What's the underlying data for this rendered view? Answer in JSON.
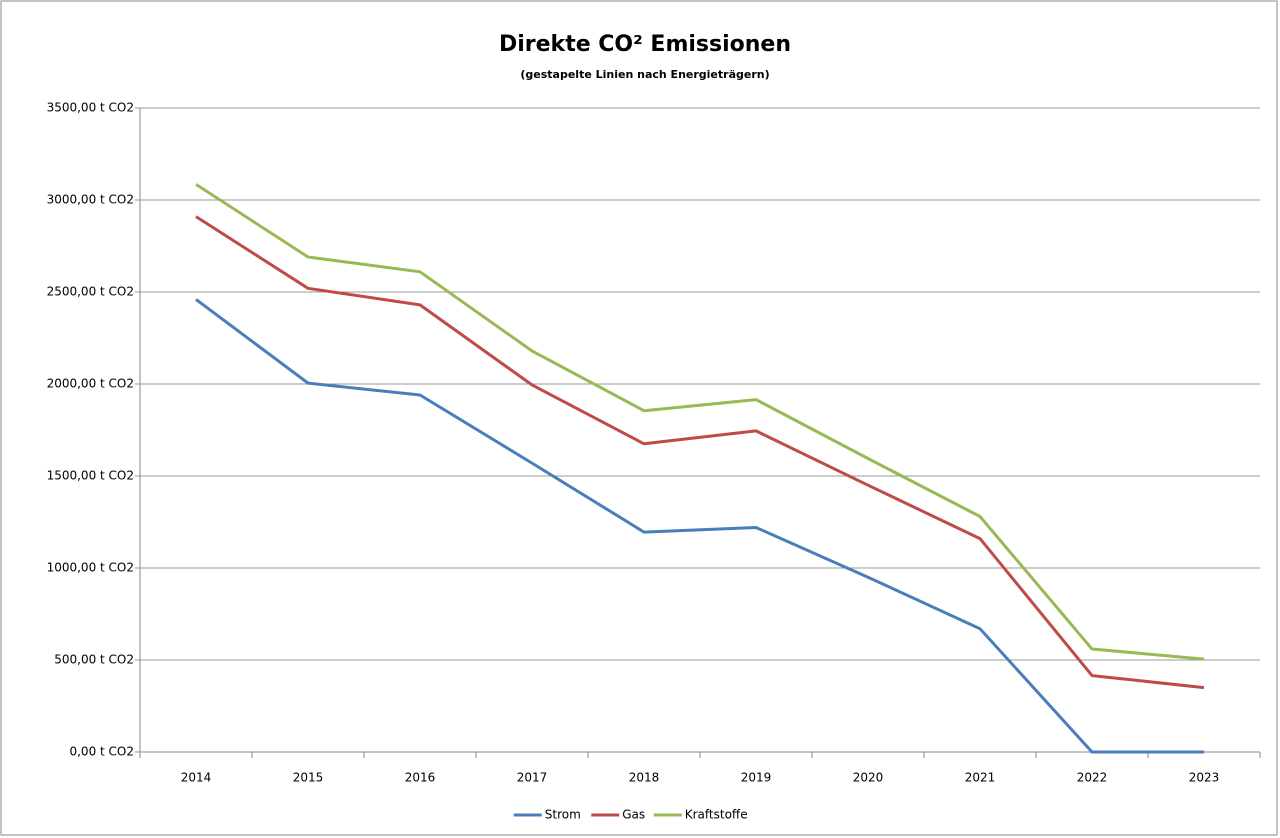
{
  "chart_data": {
    "type": "line",
    "stacked": true,
    "grid": true,
    "title": "Direkte CO² Emissionen",
    "subtitle": "(gestapelte Linien nach Energieträgern)",
    "categories": [
      "2014",
      "2015",
      "2016",
      "2017",
      "2018",
      "2019",
      "2020",
      "2021",
      "2022",
      "2023"
    ],
    "series": [
      {
        "name": "Strom",
        "color": "#4a7ebb",
        "values": [
          2460,
          2005,
          1940,
          1570,
          1195,
          1220,
          950,
          670,
          0,
          0
        ]
      },
      {
        "name": "Gas",
        "color": "#be4b48",
        "values": [
          450,
          515,
          490,
          425,
          480,
          525,
          500,
          490,
          415,
          350
        ]
      },
      {
        "name": "Kraftstoffe",
        "color": "#98b954",
        "values": [
          175,
          170,
          180,
          185,
          180,
          170,
          145,
          120,
          145,
          155
        ]
      }
    ],
    "ylim": [
      0,
      3500
    ],
    "yticks": [
      {
        "value": 0,
        "label": "0,00 t CO2"
      },
      {
        "value": 500,
        "label": "500,00 t CO2"
      },
      {
        "value": 1000,
        "label": "1000,00 t CO2"
      },
      {
        "value": 1500,
        "label": "1500,00 t CO2"
      },
      {
        "value": 2000,
        "label": "2000,00 t CO2"
      },
      {
        "value": 2500,
        "label": "2500,00 t CO2"
      },
      {
        "value": 3000,
        "label": "3000,00 t CO2"
      },
      {
        "value": 3500,
        "label": "3500,00 t CO2"
      }
    ],
    "legend": "bottom"
  }
}
